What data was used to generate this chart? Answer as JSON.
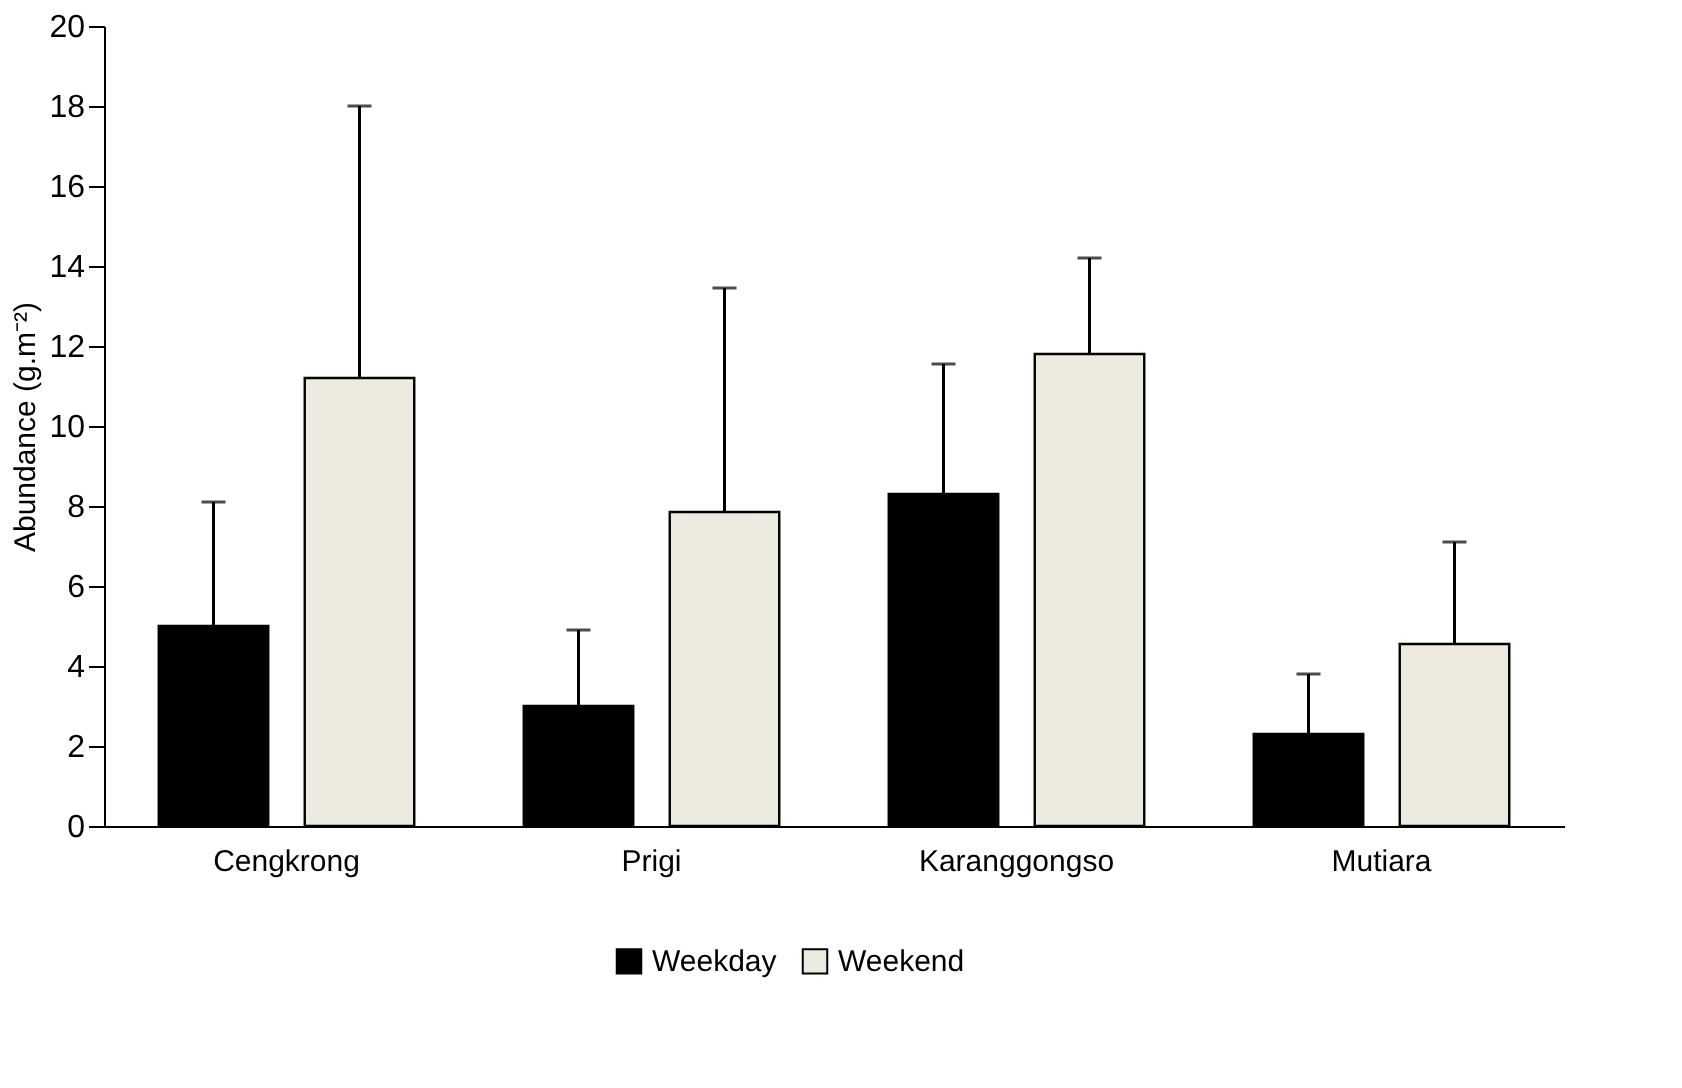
{
  "chart_data": {
    "type": "bar",
    "ylabel": "Abundance (g.m⁻²)",
    "categories": [
      "Cengkrong",
      "Prigi",
      "Karanggongso",
      "Mutiara"
    ],
    "series": [
      {
        "name": "Weekday",
        "color": "#000000",
        "values": [
          5.0,
          3.0,
          8.3,
          2.3
        ],
        "errors": [
          [
            5.0,
            8.1
          ],
          [
            3.0,
            4.9
          ],
          [
            8.3,
            11.55
          ],
          [
            2.3,
            3.8
          ]
        ]
      },
      {
        "name": "Weekend",
        "color": "#edebe0",
        "values": [
          11.2,
          7.85,
          11.8,
          4.55
        ],
        "errors": [
          [
            11.2,
            18.0
          ],
          [
            7.85,
            13.45
          ],
          [
            11.8,
            14.2
          ],
          [
            4.55,
            7.1
          ]
        ]
      }
    ],
    "ylim": [
      0,
      20
    ],
    "yticks": [
      0,
      2,
      4,
      6,
      8,
      10,
      12,
      14,
      16,
      18,
      20
    ],
    "grid": false,
    "legend": "bottom"
  }
}
